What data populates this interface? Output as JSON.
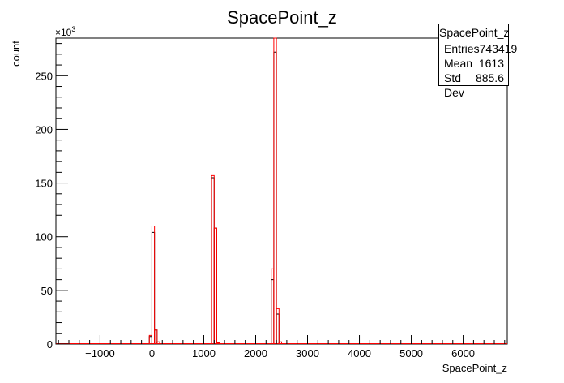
{
  "chart_data": {
    "type": "histogram",
    "title": "SpacePoint_z",
    "xlabel": "SpacePoint_z",
    "ylabel": "count",
    "y_exponent_label": "×10",
    "y_exponent_power": "3",
    "xlim": [
      -1850,
      6850
    ],
    "ylim": [
      0,
      285
    ],
    "x_ticks": [
      -1000,
      0,
      1000,
      2000,
      3000,
      4000,
      5000,
      6000
    ],
    "x_tick_labels": [
      "−1000",
      "0",
      "1000",
      "2000",
      "3000",
      "4000",
      "5000",
      "6000"
    ],
    "y_ticks": [
      0,
      50,
      100,
      150,
      200,
      250
    ],
    "y_tick_labels": [
      "0",
      "50",
      "100",
      "150",
      "200",
      "250"
    ],
    "bin_width": 50,
    "series": [
      {
        "color": "#000000",
        "bins": [
          {
            "x": -25,
            "y": 7
          },
          {
            "x": 25,
            "y": 104
          },
          {
            "x": 75,
            "y": 13
          },
          {
            "x": 125,
            "y": 2
          },
          {
            "x": 1175,
            "y": 155
          },
          {
            "x": 1225,
            "y": 108
          },
          {
            "x": 1275,
            "y": 1
          },
          {
            "x": 2325,
            "y": 60
          },
          {
            "x": 2375,
            "y": 272
          },
          {
            "x": 2425,
            "y": 28
          },
          {
            "x": 2475,
            "y": 2
          }
        ]
      },
      {
        "color": "#ff0000",
        "bins": [
          {
            "x": -25,
            "y": 8
          },
          {
            "x": 25,
            "y": 110
          },
          {
            "x": 75,
            "y": 13
          },
          {
            "x": 125,
            "y": 2
          },
          {
            "x": 1175,
            "y": 157
          },
          {
            "x": 1225,
            "y": 108
          },
          {
            "x": 1275,
            "y": 1
          },
          {
            "x": 2325,
            "y": 70
          },
          {
            "x": 2375,
            "y": 285
          },
          {
            "x": 2425,
            "y": 33
          },
          {
            "x": 2475,
            "y": 2
          }
        ]
      }
    ]
  },
  "stats": {
    "title": "SpacePoint_z",
    "rows": [
      {
        "label": "Entries",
        "value": "743419"
      },
      {
        "label": "Mean",
        "value": "1613"
      },
      {
        "label": "Std Dev",
        "value": "885.6"
      }
    ]
  }
}
